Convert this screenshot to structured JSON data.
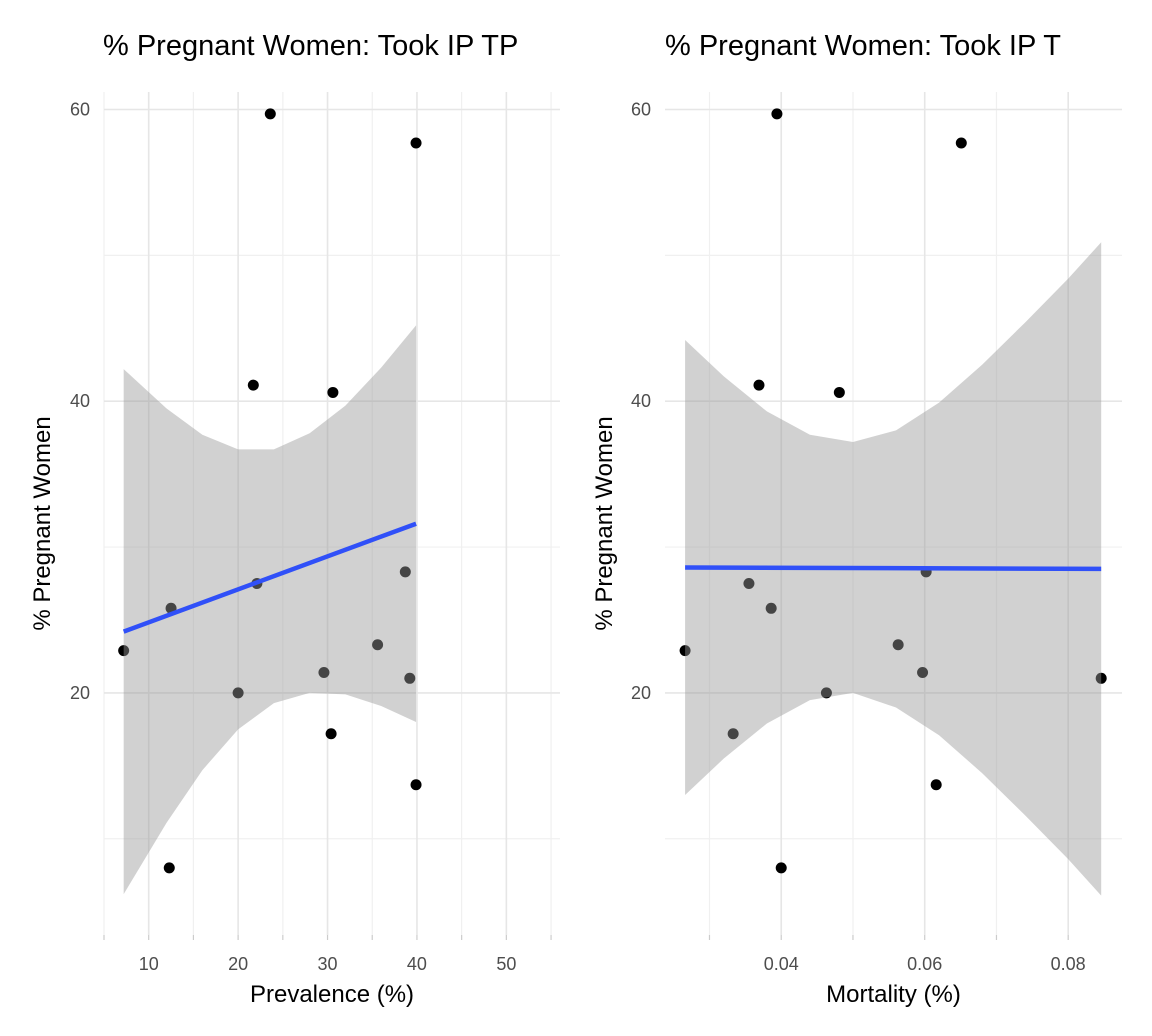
{
  "chart_data": [
    {
      "type": "scatter",
      "title": "% Pregnant Women: Took IP TP",
      "x_label": "Prevalence (%)",
      "y_label": "% Pregnant Women",
      "x": [
        7.2,
        12.5,
        21.7,
        23.6,
        22.1,
        20.0,
        30.6,
        29.6,
        30.4,
        35.6,
        38.7,
        39.2,
        39.9,
        39.9,
        12.3
      ],
      "values": [
        22.9,
        25.8,
        41.1,
        59.7,
        27.5,
        20.0,
        40.6,
        21.4,
        17.2,
        23.3,
        28.3,
        21.0,
        57.7,
        13.7,
        8.0
      ],
      "color": "#000000",
      "fit": {
        "x": [
          7.2,
          39.9
        ],
        "values": [
          24.2,
          31.6
        ],
        "color": "#3050f8"
      },
      "band": {
        "x": [
          7.2,
          12,
          16,
          20,
          24,
          28,
          32,
          36,
          39.9
        ],
        "upper": [
          42.2,
          39.5,
          37.7,
          36.7,
          36.7,
          37.8,
          39.7,
          42.3,
          45.2
        ],
        "lower": [
          6.2,
          11.1,
          14.7,
          17.5,
          19.3,
          20.0,
          19.9,
          19.1,
          18.0
        ],
        "color": "#999999"
      },
      "xlim": [
        5.0,
        56.0
      ],
      "ylim": [
        3.4,
        61.2
      ],
      "xticks": [
        10,
        20,
        30,
        40,
        50
      ],
      "x_minor_ticks": [
        5,
        15,
        25,
        35,
        45,
        55
      ],
      "yticks": [
        20,
        40,
        60
      ],
      "y_minor_ticks": [
        10,
        30,
        50
      ],
      "grid": true
    },
    {
      "type": "scatter",
      "title": "% Pregnant Women: Took IP T",
      "x_label": "Mortality (%)",
      "y_label": "% Pregnant Women",
      "x": [
        0.0266,
        0.0333,
        0.0355,
        0.0369,
        0.0386,
        0.0394,
        0.04,
        0.0463,
        0.0481,
        0.0563,
        0.0597,
        0.0602,
        0.0616,
        0.0651,
        0.0846
      ],
      "values": [
        22.9,
        17.2,
        27.5,
        41.1,
        25.8,
        59.7,
        8.0,
        20.0,
        40.6,
        23.3,
        21.4,
        28.3,
        13.7,
        57.7,
        21.0
      ],
      "color": "#000000",
      "fit": {
        "x": [
          0.0266,
          0.0846
        ],
        "values": [
          28.6,
          28.5
        ],
        "color": "#3050f8"
      },
      "band": {
        "x": [
          0.0266,
          0.032,
          0.038,
          0.044,
          0.05,
          0.056,
          0.062,
          0.068,
          0.074,
          0.08,
          0.0846
        ],
        "upper": [
          44.2,
          41.7,
          39.3,
          37.7,
          37.2,
          38.0,
          39.9,
          42.5,
          45.4,
          48.4,
          50.9
        ],
        "lower": [
          13.0,
          15.5,
          17.9,
          19.5,
          20.0,
          19.0,
          17.1,
          14.5,
          11.6,
          8.6,
          6.1
        ],
        "color": "#999999"
      },
      "xlim": [
        0.0238,
        0.0875
      ],
      "ylim": [
        3.4,
        61.2
      ],
      "xticks": [
        0.04,
        0.06,
        0.08
      ],
      "x_minor_ticks": [
        0.03,
        0.05,
        0.07
      ],
      "yticks": [
        20,
        40,
        60
      ],
      "y_minor_ticks": [
        10,
        30,
        50
      ],
      "grid": true
    }
  ]
}
